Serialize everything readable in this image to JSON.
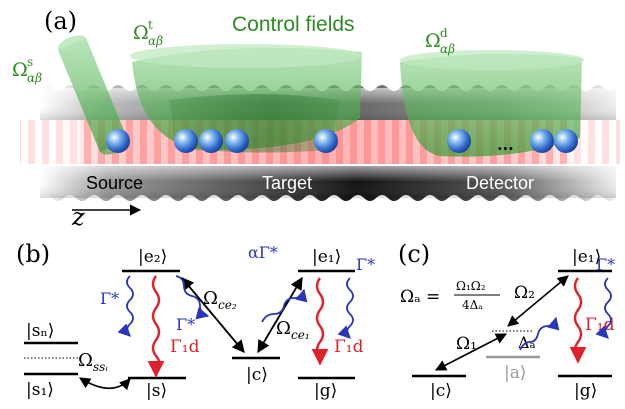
{
  "panel_a": {
    "label": "(a)",
    "title": "Control fields",
    "omega_symbol": "Ω",
    "omega_s_sup": "s",
    "omega_t_sup": "t",
    "omega_d_sup": "d",
    "omega_sub": "αβ",
    "regions": [
      "Source",
      "Target",
      "Detector"
    ],
    "ellipsis": "...",
    "axis": "z"
  },
  "panel_b": {
    "label": "(b)",
    "levels": {
      "e2": "|e₂⟩",
      "e1": "|e₁⟩",
      "sn": "|sₙ⟩",
      "s1": "|s₁⟩",
      "s": "|s⟩",
      "c": "|c⟩",
      "g": "|g⟩"
    },
    "gamma_star": "Γ*",
    "alpha_gamma_star": "αΓ*",
    "gamma_1d": "Γ₁d",
    "omega_ce2": "Ω",
    "omega_ce2_sub": "ce₂",
    "omega_ce1": "Ω",
    "omega_ce1_sub": "ce₁",
    "omega_ss": "Ω",
    "omega_ss_sub": "ssᵢ"
  },
  "panel_c": {
    "label": "(c)",
    "formula_lhs": "Ωₐ =",
    "formula_num": "Ω₁Ω₂",
    "formula_den": "4Δₐ",
    "levels": {
      "e1": "|e₁⟩",
      "c": "|c⟩",
      "a": "|a⟩",
      "g": "|g⟩"
    },
    "gamma_star": "Γ*",
    "gamma_1d": "Γ₁d",
    "omega_1": "Ω₁",
    "omega_2": "Ω₂",
    "delta_a": "Δₐ"
  },
  "colors": {
    "green_text": "#2e8b22",
    "green_fill": "#4caf50",
    "blue": "#2a36b8",
    "red": "#e0202a",
    "gray_level": "#9a9a9a"
  }
}
